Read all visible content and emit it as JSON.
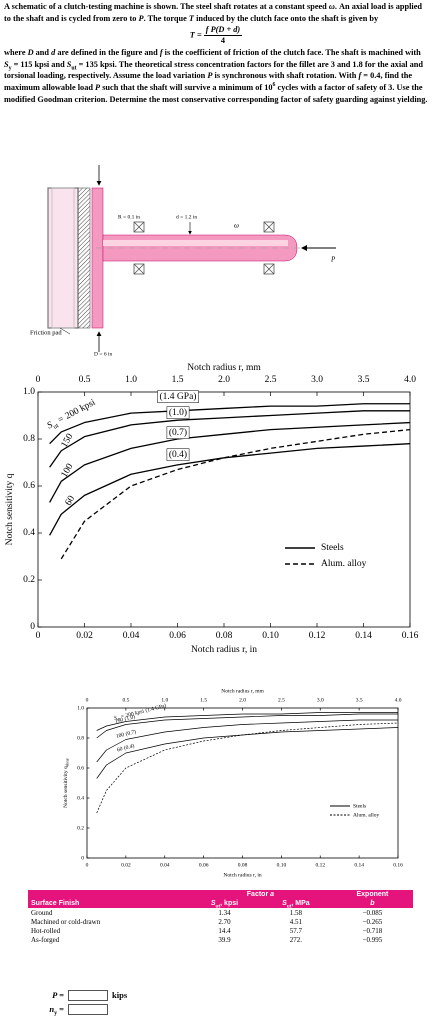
{
  "problem": {
    "paragraph1": [
      {
        "t": "A schematic of a clutch-testing machine is shown. The steel shaft rotates at a constant speed "
      },
      {
        "t": "ω",
        "s": "i"
      },
      {
        "t": ". An axial load is applied to the shaft and is cycled from zero to "
      },
      {
        "t": "P",
        "s": "i"
      },
      {
        "t": ". The torque "
      },
      {
        "t": "T",
        "s": "i"
      },
      {
        "t": " induced by the clutch face onto the shaft is given by"
      }
    ],
    "formula": {
      "lhs": "T =",
      "numerator": "f P(D + d)",
      "denominator": "4"
    },
    "paragraph2": [
      {
        "t": "where "
      },
      {
        "t": "D",
        "s": "i"
      },
      {
        "t": " and "
      },
      {
        "t": "d",
        "s": "i"
      },
      {
        "t": " are defined in the figure and "
      },
      {
        "t": "f",
        "s": "i"
      },
      {
        "t": " is the coefficient of friction of the clutch face. The shaft is machined with "
      },
      {
        "t": "S",
        "s": "i"
      },
      {
        "t": "y",
        "s": "sub"
      },
      {
        "t": " = 115 kpsi and "
      },
      {
        "t": "S",
        "s": "i"
      },
      {
        "t": "ut",
        "s": "sub"
      },
      {
        "t": " = 135 kpsi. The theoretical stress concentration factors for the fillet are 3 and 1.8 for the axial and torsional loading, respectively. Assume the load variation "
      },
      {
        "t": "P",
        "s": "i"
      },
      {
        "t": " is synchronous with shaft rotation. With "
      },
      {
        "t": "f",
        "s": "i"
      },
      {
        "t": " = 0.4, find the maximum allowable load "
      },
      {
        "t": "P",
        "s": "i"
      },
      {
        "t": " such that the shaft will survive a minimum of 10"
      },
      {
        "t": "6",
        "s": "sup"
      },
      {
        "t": " cycles with a factor of safety of 3. Use the modified Goodman criterion. Determine the most conservative corresponding factor of safety guarding against yielding."
      }
    ]
  },
  "figure": {
    "R": "R = 0.1 in",
    "d": "d = 1.2 in",
    "omega": "ω",
    "P": "P",
    "pad": "Friction pad",
    "D": "D = 6 in"
  },
  "chart_data": [
    {
      "type": "line",
      "x2label": "Notch radius r, mm",
      "x2lim": [
        0,
        4
      ],
      "x2ticks": [
        0,
        0.5,
        {
          "value": 1,
          "label": "1.0"
        },
        1.5,
        {
          "value": 2,
          "label": "2.0"
        },
        2.5,
        {
          "value": 3,
          "label": "3.0"
        },
        3.5,
        {
          "value": 4,
          "label": "4.0"
        }
      ],
      "xlabel": "Notch radius r, in",
      "xlim": [
        0,
        0.16
      ],
      "xticks": [
        0,
        0.02,
        0.04,
        0.06,
        0.08,
        {
          "value": 0.1,
          "label": "0.10"
        },
        0.12,
        0.14,
        0.16
      ],
      "ylabel": "Notch sensitivity q",
      "ylim": [
        0,
        1
      ],
      "yticks": [
        0,
        0.2,
        0.4,
        0.6,
        0.8,
        {
          "value": 1,
          "label": "1.0"
        }
      ],
      "label_prefix": [
        "S",
        "ut",
        " ="
      ],
      "x": [
        0.005,
        0.01,
        0.02,
        0.04,
        0.06,
        0.08,
        0.1,
        0.12,
        0.14,
        0.16
      ],
      "series": [
        {
          "name": "200 kpsi",
          "label2": "(1.4 GPa)",
          "color": "#000000",
          "dashed": false,
          "values": [
            0.78,
            0.83,
            0.87,
            0.91,
            0.92,
            0.93,
            0.94,
            0.94,
            0.95,
            0.95
          ]
        },
        {
          "name": "150",
          "label2": "(1.0)",
          "color": "#000000",
          "dashed": false,
          "values": [
            0.68,
            0.75,
            0.81,
            0.86,
            0.88,
            0.89,
            0.9,
            0.91,
            0.92,
            0.92
          ]
        },
        {
          "name": "100",
          "label2": "(0.7)",
          "color": "#000000",
          "dashed": false,
          "values": [
            0.53,
            0.62,
            0.69,
            0.76,
            0.8,
            0.82,
            0.84,
            0.85,
            0.86,
            0.87
          ]
        },
        {
          "name": "60",
          "label2": "(0.4)",
          "color": "#000000",
          "dashed": false,
          "values": [
            0.39,
            0.48,
            0.56,
            0.65,
            0.69,
            0.72,
            0.74,
            0.76,
            0.77,
            0.78
          ]
        },
        {
          "color": "#000000",
          "dashed": true,
          "values": [
            null,
            0.29,
            0.45,
            0.6,
            0.67,
            0.72,
            0.76,
            0.79,
            0.82,
            0.84
          ]
        }
      ],
      "legend": [
        {
          "label": "Steels",
          "dashed": false
        },
        {
          "label": "Alum. alloy",
          "dashed": true
        }
      ],
      "legend_position": "right"
    },
    {
      "type": "line",
      "x2label": "Notch radius r, mm",
      "x2lim": [
        0,
        4
      ],
      "x2ticks": [
        0,
        0.5,
        {
          "value": 1,
          "label": "1.0"
        },
        1.5,
        {
          "value": 2,
          "label": "2.0"
        },
        2.5,
        {
          "value": 3,
          "label": "3.0"
        },
        3.5,
        {
          "value": 4,
          "label": "4.0"
        }
      ],
      "xlabel": "Notch radius r, in",
      "xlim": [
        0,
        0.16
      ],
      "xticks": [
        0,
        0.02,
        0.04,
        0.06,
        0.08,
        {
          "value": 0.1,
          "label": "0.10"
        },
        0.12,
        0.14,
        0.16
      ],
      "ylabel": "Notch sensitivity q",
      "ylabel_sub": "shear",
      "ylim": [
        0,
        1
      ],
      "yticks": [
        0,
        0.2,
        0.4,
        0.6,
        0.8,
        {
          "value": 1,
          "label": "1.0"
        }
      ],
      "label_prefix": [
        "S",
        "ut",
        " ="
      ],
      "x": [
        0.005,
        0.01,
        0.02,
        0.04,
        0.06,
        0.08,
        0.1,
        0.12,
        0.14,
        0.16
      ],
      "series": [
        {
          "name": "200 kpsi",
          "label2": "(1.4 GPa)",
          "color": "#000000",
          "dashed": false,
          "values": [
            0.85,
            0.88,
            0.91,
            0.94,
            0.95,
            0.96,
            0.96,
            0.97,
            0.97,
            0.97
          ]
        },
        {
          "name": "150",
          "label2": "(1.0)",
          "color": "#000000",
          "dashed": false,
          "values": [
            0.8,
            0.85,
            0.89,
            0.92,
            0.93,
            0.94,
            0.95,
            0.95,
            0.96,
            0.96
          ]
        },
        {
          "name": "100",
          "label2": "(0.7)",
          "color": "#000000",
          "dashed": false,
          "values": [
            0.64,
            0.72,
            0.79,
            0.84,
            0.87,
            0.89,
            0.9,
            0.91,
            0.92,
            0.92
          ]
        },
        {
          "name": "60",
          "label2": "(0.4)",
          "color": "#000000",
          "dashed": false,
          "values": [
            0.53,
            0.62,
            0.7,
            0.76,
            0.8,
            0.82,
            0.84,
            0.85,
            0.86,
            0.87
          ]
        },
        {
          "color": "#000000",
          "dashed": true,
          "values": [
            0.3,
            0.45,
            0.6,
            0.72,
            0.78,
            0.82,
            0.85,
            0.87,
            0.89,
            0.9
          ]
        }
      ],
      "legend": [
        {
          "label": "Steels",
          "dashed": false
        },
        {
          "label": "Alum. alloy",
          "dashed": true
        }
      ],
      "legend_position": "right"
    }
  ],
  "table": {
    "header": {
      "factor": [
        "Factor ",
        "a"
      ],
      "exponent": "Exponent",
      "finish": "Surface Finish",
      "kpsi": [
        "S",
        "ut",
        ", kpsi"
      ],
      "mpa": [
        "S",
        "ut",
        ", MPa"
      ],
      "b": "b"
    },
    "rows": [
      [
        "Ground",
        "1.34",
        "1.58",
        "−0.085"
      ],
      [
        "Machined or cold-drawn",
        "2.70",
        "4.51",
        "−0.265"
      ],
      [
        "Hot-rolled",
        "14.4",
        "57.7",
        "−0.718"
      ],
      [
        "As-forged",
        "39.9",
        "272.",
        "−0.995"
      ]
    ]
  },
  "answer": {
    "p_label": "P =",
    "p_unit": "kips",
    "n_label": [
      "n",
      "y",
      " ="
    ]
  }
}
